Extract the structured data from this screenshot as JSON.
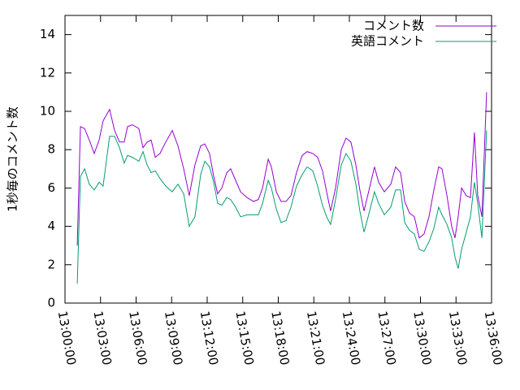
{
  "chart_data": {
    "type": "line",
    "ylabel": "1秒毎のコメント数",
    "x": [
      "13:01:02",
      "13:01:18",
      "13:01:39",
      "13:02:03",
      "13:02:28",
      "13:02:53",
      "13:03:13",
      "13:03:46",
      "13:04:11",
      "13:04:36",
      "13:05:00",
      "13:05:17",
      "13:05:41",
      "13:06:14",
      "13:06:35",
      "13:06:56",
      "13:07:16",
      "13:07:37",
      "13:08:01",
      "13:08:30",
      "13:09:03",
      "13:09:32",
      "13:10:01",
      "13:10:29",
      "13:10:58",
      "13:11:27",
      "13:11:48",
      "13:12:12",
      "13:12:33",
      "13:12:53",
      "13:13:14",
      "13:13:39",
      "13:13:59",
      "13:14:24",
      "13:14:49",
      "13:15:22",
      "13:15:54",
      "13:16:19",
      "13:16:40",
      "13:17:09",
      "13:17:25",
      "13:17:50",
      "13:18:14",
      "13:18:39",
      "13:19:04",
      "13:19:32",
      "13:20:01",
      "13:20:26",
      "13:20:55",
      "13:21:19",
      "13:21:44",
      "13:22:05",
      "13:22:25",
      "13:22:50",
      "13:23:19",
      "13:23:43",
      "13:24:08",
      "13:24:33",
      "13:24:53",
      "13:25:14",
      "13:25:35",
      "13:26:07",
      "13:26:28",
      "13:26:57",
      "13:27:30",
      "13:27:54",
      "13:28:19",
      "13:28:40",
      "13:29:04",
      "13:29:29",
      "13:29:54",
      "13:30:18",
      "13:30:43",
      "13:31:08",
      "13:31:32",
      "13:31:49",
      "13:32:14",
      "13:32:38",
      "13:32:55",
      "13:33:11",
      "13:33:28",
      "13:33:52",
      "13:34:13",
      "13:34:33",
      "13:34:50",
      "13:35:11",
      "13:35:35"
    ],
    "series": [
      {
        "name": "コメント数",
        "color": "#9400d3",
        "values": [
          3.0,
          9.2,
          9.1,
          8.5,
          7.8,
          8.5,
          9.5,
          10.1,
          9.0,
          8.4,
          8.4,
          9.2,
          9.3,
          9.1,
          8.1,
          8.4,
          8.5,
          7.6,
          7.8,
          8.4,
          9.0,
          8.2,
          7.0,
          5.6,
          7.2,
          8.2,
          8.3,
          7.8,
          6.6,
          5.7,
          6.0,
          6.8,
          7.0,
          6.4,
          5.8,
          5.5,
          5.3,
          5.4,
          6.0,
          7.5,
          7.1,
          5.8,
          5.3,
          5.3,
          5.6,
          6.8,
          7.7,
          7.9,
          7.8,
          7.6,
          6.9,
          5.8,
          4.8,
          6.0,
          8.0,
          8.6,
          8.4,
          7.2,
          5.9,
          4.8,
          5.7,
          7.1,
          6.3,
          5.8,
          6.2,
          7.1,
          6.8,
          5.3,
          4.7,
          4.5,
          3.4,
          3.6,
          4.5,
          5.9,
          7.1,
          7.0,
          5.6,
          4.0,
          3.4,
          4.5,
          6.0,
          5.6,
          5.5,
          8.9,
          5.6,
          4.5,
          11.0
        ]
      },
      {
        "name": "英語コメント",
        "color": "#009e73",
        "values": [
          1.0,
          6.6,
          7.0,
          6.2,
          5.9,
          6.3,
          6.1,
          8.7,
          8.7,
          8.1,
          7.3,
          7.7,
          7.6,
          7.4,
          7.9,
          7.2,
          6.8,
          6.9,
          6.5,
          6.1,
          5.8,
          6.2,
          5.7,
          4.0,
          4.5,
          6.7,
          7.4,
          7.1,
          6.3,
          5.2,
          5.1,
          5.5,
          5.4,
          5.0,
          4.5,
          4.6,
          4.6,
          4.6,
          5.2,
          6.4,
          6.0,
          4.9,
          4.2,
          4.3,
          5.0,
          6.1,
          6.7,
          7.1,
          6.9,
          6.1,
          5.1,
          4.5,
          4.1,
          5.4,
          7.2,
          7.8,
          7.4,
          6.2,
          4.8,
          3.7,
          4.5,
          5.8,
          5.2,
          4.6,
          5.0,
          5.9,
          5.9,
          4.2,
          3.8,
          3.6,
          2.8,
          2.7,
          3.2,
          3.9,
          5.0,
          4.6,
          4.1,
          3.4,
          2.4,
          1.8,
          2.8,
          3.7,
          4.5,
          6.3,
          5.2,
          3.4,
          9.0
        ]
      }
    ],
    "xlim": [
      "13:00:00",
      "13:36:00"
    ],
    "xticks": [
      "13:00:00",
      "13:03:00",
      "13:06:00",
      "13:09:00",
      "13:12:00",
      "13:15:00",
      "13:18:00",
      "13:21:00",
      "13:24:00",
      "13:27:00",
      "13:30:00",
      "13:33:00",
      "13:36:00"
    ],
    "ylim": [
      0,
      15
    ],
    "yticks": [
      0,
      2,
      4,
      6,
      8,
      10,
      12,
      14
    ],
    "legend": "top-right"
  }
}
